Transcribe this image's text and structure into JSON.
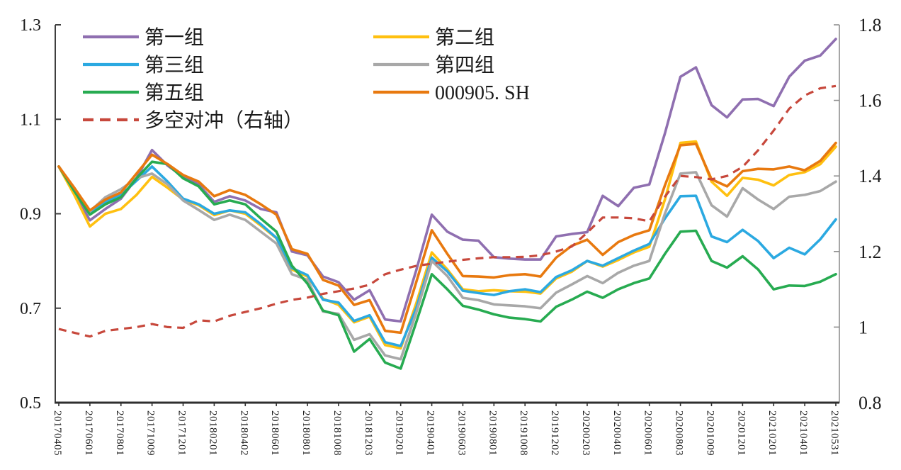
{
  "chart_data": {
    "type": "line",
    "title": "",
    "grid": false,
    "legend_position": "top-left-inside-two-columns",
    "x_tick_labels": [
      "20170405",
      "20170601",
      "20170801",
      "20171009",
      "20171201",
      "20180201",
      "20180402",
      "20180601",
      "20180801",
      "20181008",
      "20181203",
      "20190201",
      "20190401",
      "20190603",
      "20190801",
      "20191008",
      "20191202",
      "20200203",
      "20200401",
      "20200601",
      "20200803",
      "20201009",
      "20201201",
      "20210201",
      "20210401",
      "20210531"
    ],
    "points_per_label_interval": 2,
    "left_axis": {
      "min": 0.5,
      "max": 1.3,
      "tick_values": [
        1.3,
        1.1,
        0.9,
        0.7,
        0.5
      ],
      "tick_labels": [
        "1.3",
        "1.1",
        "0.9",
        "0.7",
        "0.5"
      ]
    },
    "right_axis": {
      "min": 0.8,
      "max": 1.8,
      "tick_values": [
        1.8,
        1.6,
        1.4,
        1.2,
        1.0,
        0.8
      ],
      "tick_labels": [
        "1.8",
        "1.6",
        "1.4",
        "1.2",
        "1",
        "0.8"
      ]
    },
    "series": [
      {
        "name": "第一组",
        "color": "#8F6FB0",
        "axis": "left",
        "line_style": "solid",
        "values": [
          1.0,
          0.945,
          0.886,
          0.91,
          0.932,
          0.975,
          1.035,
          1.002,
          0.978,
          0.962,
          0.925,
          0.937,
          0.928,
          0.91,
          0.903,
          0.82,
          0.812,
          0.767,
          0.755,
          0.718,
          0.738,
          0.676,
          0.672,
          0.78,
          0.898,
          0.862,
          0.845,
          0.843,
          0.808,
          0.805,
          0.803,
          0.803,
          0.852,
          0.857,
          0.861,
          0.938,
          0.916,
          0.955,
          0.962,
          1.07,
          1.19,
          1.21,
          1.13,
          1.104,
          1.142,
          1.143,
          1.128,
          1.19,
          1.224,
          1.235,
          1.27
        ]
      },
      {
        "name": "第二组",
        "color": "#FFC010",
        "axis": "left",
        "line_style": "solid",
        "values": [
          1.0,
          0.94,
          0.873,
          0.9,
          0.91,
          0.94,
          0.978,
          0.955,
          0.93,
          0.918,
          0.897,
          0.907,
          0.9,
          0.875,
          0.848,
          0.782,
          0.767,
          0.72,
          0.707,
          0.67,
          0.682,
          0.622,
          0.615,
          0.71,
          0.818,
          0.782,
          0.74,
          0.736,
          0.738,
          0.736,
          0.735,
          0.731,
          0.763,
          0.777,
          0.8,
          0.788,
          0.802,
          0.818,
          0.83,
          0.93,
          1.05,
          1.053,
          0.968,
          0.938,
          0.976,
          0.972,
          0.96,
          0.982,
          0.988,
          1.005,
          1.042
        ]
      },
      {
        "name": "第三组",
        "color": "#2BA9E1",
        "axis": "left",
        "line_style": "solid",
        "values": [
          1.0,
          0.95,
          0.9,
          0.925,
          0.94,
          0.97,
          1.0,
          0.968,
          0.932,
          0.92,
          0.9,
          0.907,
          0.903,
          0.878,
          0.849,
          0.785,
          0.77,
          0.718,
          0.712,
          0.673,
          0.685,
          0.628,
          0.62,
          0.7,
          0.807,
          0.778,
          0.737,
          0.732,
          0.728,
          0.736,
          0.74,
          0.734,
          0.766,
          0.78,
          0.8,
          0.79,
          0.806,
          0.822,
          0.836,
          0.89,
          0.937,
          0.938,
          0.852,
          0.84,
          0.866,
          0.842,
          0.806,
          0.828,
          0.814,
          0.846,
          0.888
        ]
      },
      {
        "name": "第四组",
        "color": "#A8A8A8",
        "axis": "left",
        "line_style": "solid",
        "values": [
          1.0,
          0.952,
          0.905,
          0.935,
          0.952,
          0.975,
          0.985,
          0.962,
          0.928,
          0.908,
          0.887,
          0.898,
          0.887,
          0.862,
          0.837,
          0.772,
          0.76,
          0.693,
          0.688,
          0.633,
          0.645,
          0.6,
          0.592,
          0.69,
          0.8,
          0.768,
          0.722,
          0.717,
          0.708,
          0.706,
          0.704,
          0.7,
          0.733,
          0.75,
          0.768,
          0.753,
          0.775,
          0.79,
          0.8,
          0.9,
          0.985,
          0.988,
          0.918,
          0.894,
          0.954,
          0.93,
          0.91,
          0.936,
          0.94,
          0.948,
          0.968
        ]
      },
      {
        "name": "第五组",
        "color": "#27AB51",
        "axis": "left",
        "line_style": "solid",
        "values": [
          1.0,
          0.948,
          0.898,
          0.92,
          0.935,
          0.975,
          1.01,
          1.005,
          0.975,
          0.958,
          0.92,
          0.928,
          0.92,
          0.89,
          0.862,
          0.79,
          0.752,
          0.695,
          0.685,
          0.608,
          0.635,
          0.585,
          0.572,
          0.67,
          0.772,
          0.74,
          0.705,
          0.697,
          0.687,
          0.68,
          0.677,
          0.672,
          0.703,
          0.718,
          0.735,
          0.722,
          0.74,
          0.753,
          0.763,
          0.815,
          0.862,
          0.864,
          0.8,
          0.786,
          0.81,
          0.782,
          0.74,
          0.748,
          0.747,
          0.756,
          0.772
        ]
      },
      {
        "name": "000905. SH",
        "color": "#E8790F",
        "axis": "left",
        "line_style": "solid",
        "values": [
          1.0,
          0.955,
          0.907,
          0.93,
          0.945,
          0.985,
          1.025,
          1.005,
          0.982,
          0.968,
          0.937,
          0.95,
          0.94,
          0.92,
          0.898,
          0.825,
          0.815,
          0.76,
          0.748,
          0.707,
          0.717,
          0.652,
          0.648,
          0.755,
          0.865,
          0.815,
          0.768,
          0.767,
          0.765,
          0.77,
          0.772,
          0.767,
          0.807,
          0.832,
          0.845,
          0.813,
          0.84,
          0.855,
          0.865,
          0.96,
          1.045,
          1.048,
          0.973,
          0.958,
          0.99,
          0.995,
          0.994,
          1.0,
          0.992,
          1.012,
          1.05
        ]
      },
      {
        "name": "多空对冲（右轴）",
        "color": "#C7483C",
        "axis": "right",
        "line_style": "dashed",
        "values": [
          0.995,
          0.985,
          0.975,
          0.99,
          0.995,
          1.0,
          1.008,
          1.0,
          0.998,
          1.018,
          1.015,
          1.03,
          1.04,
          1.05,
          1.062,
          1.072,
          1.078,
          1.088,
          1.095,
          1.102,
          1.112,
          1.14,
          1.152,
          1.162,
          1.168,
          1.173,
          1.178,
          1.182,
          1.185,
          1.185,
          1.186,
          1.19,
          1.2,
          1.213,
          1.25,
          1.29,
          1.29,
          1.288,
          1.28,
          1.345,
          1.4,
          1.397,
          1.391,
          1.4,
          1.424,
          1.468,
          1.52,
          1.578,
          1.613,
          1.632,
          1.638
        ]
      }
    ],
    "legend": {
      "columns": [
        [
          "第一组",
          "第三组",
          "第五组",
          "多空对冲（右轴）"
        ],
        [
          "第二组",
          "第四组",
          "000905. SH"
        ]
      ]
    },
    "colors": {
      "axis_left": "#3f3f3f",
      "axis_right": "#8f8f8f",
      "axis_bottom": "#2f2f2f",
      "tick_text": "#1b1b1b",
      "legend_text": "#1a1a1a"
    }
  }
}
